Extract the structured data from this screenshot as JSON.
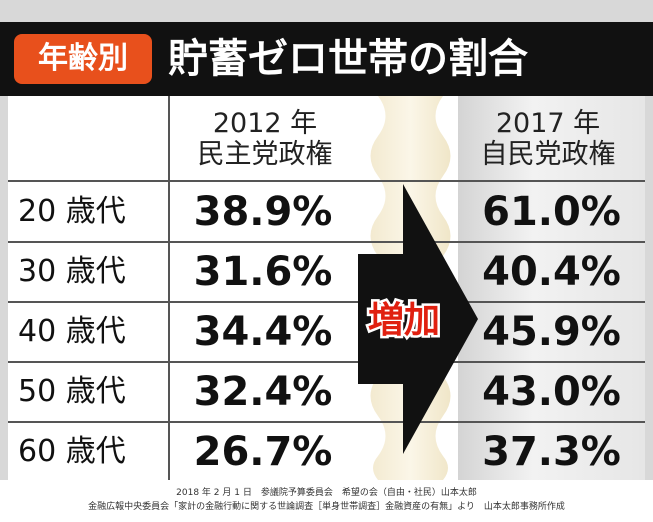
{
  "header": {
    "badge": "年齢別",
    "title": "貯蓄ゼロ世帯の割合"
  },
  "table": {
    "columns": [
      {
        "year": "2012 年",
        "government": "民主党政権"
      },
      {
        "year": "2017 年",
        "government": "自民党政権"
      }
    ],
    "rows": [
      [
        "20 歳代",
        "38.9%",
        "61.0%"
      ],
      [
        "30 歳代",
        "31.6%",
        "40.4%"
      ],
      [
        "40 歳代",
        "34.4%",
        "45.9%"
      ],
      [
        "50 歳代",
        "32.4%",
        "43.0%"
      ],
      [
        "60 歳代",
        "26.7%",
        "37.3%"
      ]
    ],
    "arrow_label": "増加"
  },
  "footer": {
    "lines": [
      "2018 年 2 月 1 日　参議院予算委員会　希望の会（自由・社民）山本太郎",
      "金融広報中央委員会「家計の金融行動に関する世論調査［単身世帯調査］金融資産の有無」より　山本太郎事務所作成"
    ]
  }
}
